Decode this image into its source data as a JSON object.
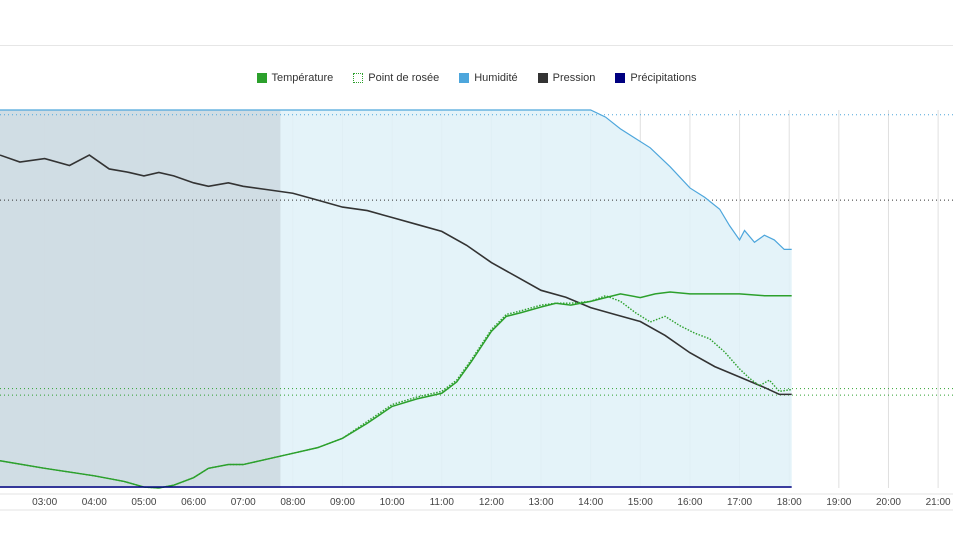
{
  "chart_data": {
    "type": "line",
    "x_ticks": [
      "03:00",
      "04:00",
      "05:00",
      "06:00",
      "07:00",
      "08:00",
      "09:00",
      "10:00",
      "11:00",
      "12:00",
      "13:00",
      "14:00",
      "15:00",
      "16:00",
      "17:00",
      "18:00",
      "19:00",
      "20:00",
      "21:00"
    ],
    "x_range": [
      2.1,
      21.3
    ],
    "night_band": [
      2.1,
      7.75
    ],
    "data_end": 18.05,
    "legend": [
      {
        "key": "temperature",
        "label": "Température",
        "color": "#2ca02c",
        "style": "solid"
      },
      {
        "key": "dew_point",
        "label": "Point de rosée",
        "color": "#2ca02c",
        "style": "dotted"
      },
      {
        "key": "humidity",
        "label": "Humidité",
        "color": "#4da6dc",
        "style": "solid"
      },
      {
        "key": "pressure",
        "label": "Pression",
        "color": "#333333",
        "style": "solid"
      },
      {
        "key": "precipitation",
        "label": "Précipitations",
        "color": "#000080",
        "style": "solid"
      }
    ],
    "series": [
      {
        "key": "humidity",
        "unit_percent": true,
        "x": [
          2.1,
          14.0,
          14.3,
          14.6,
          14.9,
          15.2,
          15.6,
          16.0,
          16.3,
          16.6,
          16.8,
          17.0,
          17.1,
          17.3,
          17.5,
          17.7,
          17.9,
          18.05
        ],
        "y": [
          100,
          100,
          97,
          92,
          88,
          84,
          76,
          67,
          63,
          58,
          51,
          45,
          49,
          44,
          47,
          45,
          41,
          41
        ]
      },
      {
        "key": "pressure",
        "unit": "hPa",
        "x": [
          2.1,
          2.5,
          3.0,
          3.5,
          3.9,
          4.3,
          4.7,
          5.0,
          5.3,
          5.6,
          6.0,
          6.3,
          6.7,
          7.0,
          7.5,
          8.0,
          8.5,
          9.0,
          9.5,
          10.0,
          10.5,
          11.0,
          11.5,
          12.0,
          12.5,
          13.0,
          13.5,
          14.0,
          14.5,
          15.0,
          15.5,
          16.0,
          16.5,
          17.0,
          17.5,
          17.8,
          18.05
        ],
        "y": [
          1013.6,
          1013.4,
          1013.5,
          1013.3,
          1013.6,
          1013.2,
          1013.1,
          1013.0,
          1013.1,
          1013.0,
          1012.8,
          1012.7,
          1012.8,
          1012.7,
          1012.6,
          1012.5,
          1012.3,
          1012.1,
          1012.0,
          1011.8,
          1011.6,
          1011.4,
          1011.0,
          1010.5,
          1010.1,
          1009.7,
          1009.5,
          1009.2,
          1009.0,
          1008.8,
          1008.4,
          1007.9,
          1007.5,
          1007.2,
          1006.9,
          1006.7,
          1006.7
        ]
      },
      {
        "key": "temperature",
        "unit": "°C",
        "x": [
          2.1,
          3.0,
          4.0,
          4.6,
          5.0,
          5.3,
          5.6,
          6.0,
          6.3,
          6.7,
          7.0,
          7.5,
          8.0,
          8.5,
          9.0,
          9.5,
          10.0,
          10.5,
          11.0,
          11.3,
          11.6,
          12.0,
          12.3,
          12.6,
          13.0,
          13.3,
          13.6,
          14.0,
          14.3,
          14.6,
          15.0,
          15.3,
          15.6,
          16.0,
          16.5,
          17.0,
          17.5,
          18.05
        ],
        "y": [
          9.2,
          8.8,
          8.4,
          8.1,
          7.8,
          7.75,
          7.9,
          8.3,
          8.8,
          9.0,
          9.0,
          9.3,
          9.6,
          9.9,
          10.4,
          11.2,
          12.1,
          12.5,
          12.8,
          13.4,
          14.5,
          16.1,
          16.9,
          17.1,
          17.4,
          17.6,
          17.5,
          17.7,
          17.9,
          18.1,
          17.9,
          18.1,
          18.2,
          18.1,
          18.1,
          18.1,
          18.0,
          18.0
        ]
      },
      {
        "key": "dew_point",
        "unit": "°C",
        "x": [
          2.1,
          3.0,
          4.0,
          4.6,
          5.0,
          5.3,
          5.6,
          6.0,
          6.3,
          6.7,
          7.0,
          7.5,
          8.0,
          8.5,
          9.0,
          9.5,
          10.0,
          10.5,
          11.0,
          11.3,
          11.6,
          12.0,
          12.3,
          12.6,
          13.0,
          13.3,
          13.6,
          14.0,
          14.3,
          14.6,
          14.9,
          15.2,
          15.5,
          15.8,
          16.1,
          16.4,
          16.7,
          17.0,
          17.2,
          17.4,
          17.6,
          17.8,
          18.05
        ],
        "y": [
          9.2,
          8.8,
          8.4,
          8.1,
          7.8,
          7.75,
          7.9,
          8.3,
          8.8,
          9.0,
          9.0,
          9.3,
          9.6,
          9.9,
          10.4,
          11.3,
          12.2,
          12.6,
          12.9,
          13.5,
          14.6,
          16.2,
          17.0,
          17.2,
          17.5,
          17.6,
          17.6,
          17.7,
          18.0,
          17.7,
          17.1,
          16.6,
          16.9,
          16.4,
          16.0,
          15.7,
          15.0,
          14.1,
          13.6,
          13.2,
          13.5,
          12.9,
          13.0
        ]
      },
      {
        "key": "precipitation",
        "unit": "mm",
        "x": [
          2.1,
          18.05
        ],
        "y": [
          0,
          0
        ]
      }
    ],
    "reference_lines": [
      {
        "axis": "humidity",
        "value": 98,
        "color": "#4da6dc"
      },
      {
        "axis": "pressure",
        "value": 1012.3,
        "color": "#333333"
      },
      {
        "axis": "temperature",
        "value": 13.05,
        "color": "#2ca02c"
      },
      {
        "axis": "temperature",
        "value": 12.7,
        "color": "#2ca02c"
      }
    ],
    "scales": {
      "humidity": [
        -60,
        100
      ],
      "pressure": [
        1004,
        1014.9
      ],
      "temperature": [
        7.75,
        27.9
      ]
    }
  }
}
